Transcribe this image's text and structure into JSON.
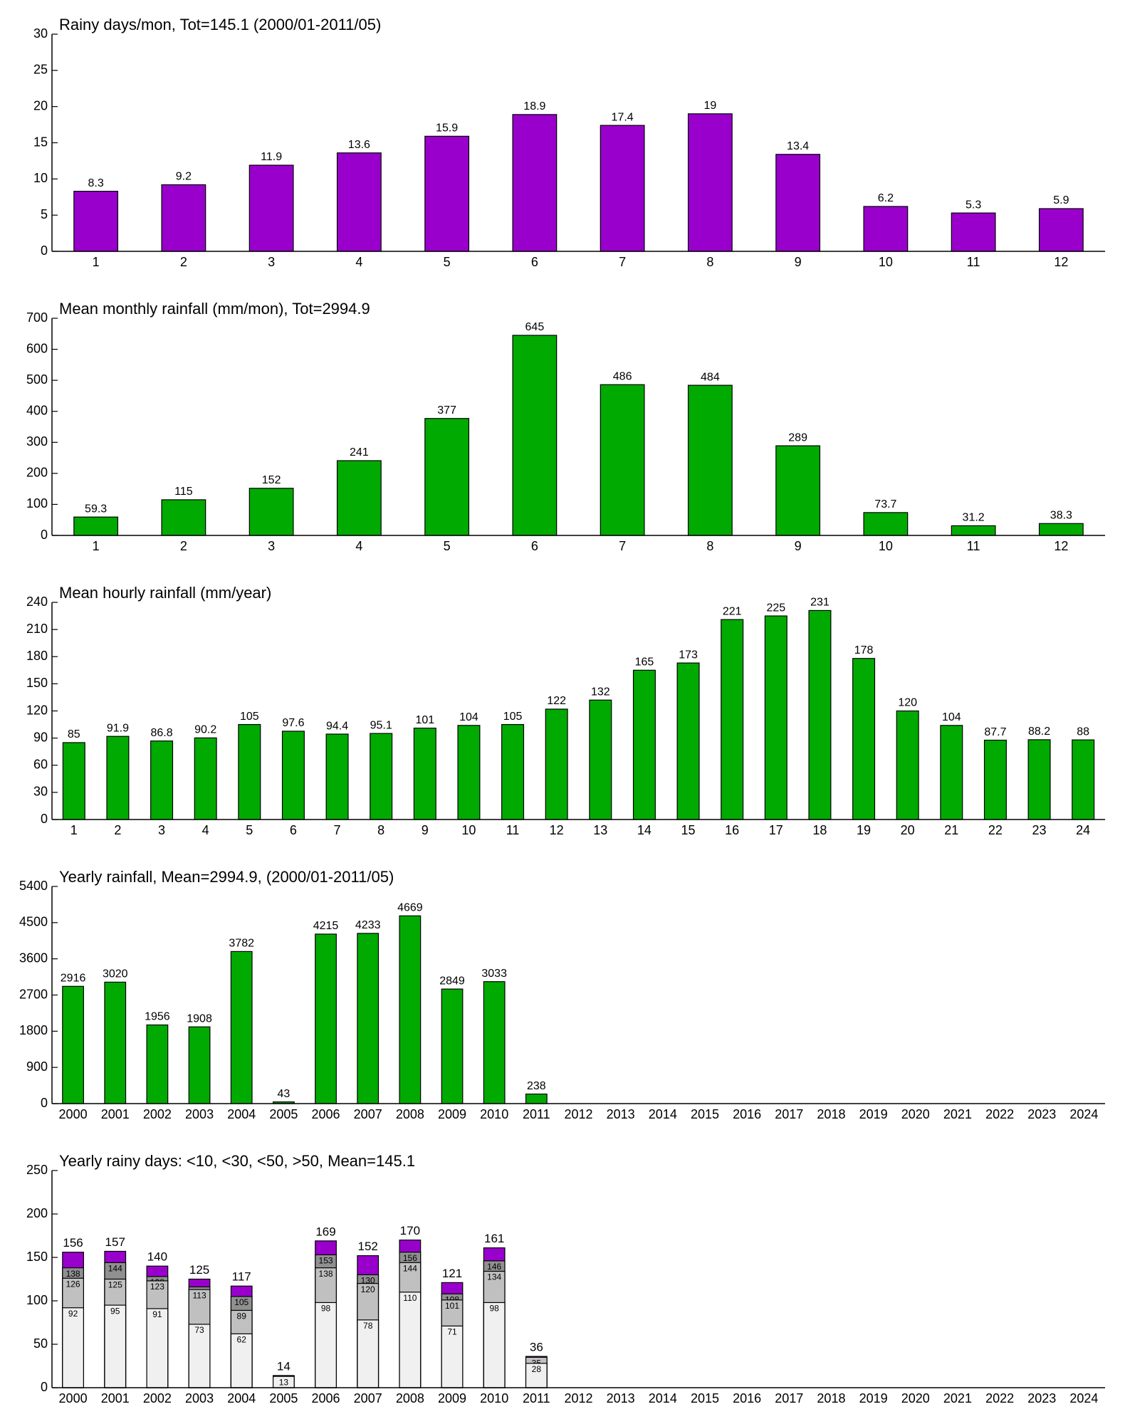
{
  "chart_data": [
    {
      "type": "bar",
      "title": "Rainy days/mon, Tot=145.1 (2000/01-2011/05)",
      "categories": [
        "1",
        "2",
        "3",
        "4",
        "5",
        "6",
        "7",
        "8",
        "9",
        "10",
        "11",
        "12"
      ],
      "values": [
        8.3,
        9.2,
        11.9,
        13.6,
        15.9,
        18.9,
        17.4,
        19,
        13.4,
        6.2,
        5.3,
        5.9
      ],
      "color": "#9900cc",
      "ylim": [
        0,
        30
      ],
      "yticks": [
        0,
        5,
        10,
        15,
        20,
        25,
        30
      ]
    },
    {
      "type": "bar",
      "title": "Mean monthly rainfall (mm/mon), Tot=2994.9",
      "categories": [
        "1",
        "2",
        "3",
        "4",
        "5",
        "6",
        "7",
        "8",
        "9",
        "10",
        "11",
        "12"
      ],
      "values": [
        59.3,
        115,
        152,
        241,
        377,
        645,
        486,
        484,
        289,
        73.7,
        31.2,
        38.3
      ],
      "color": "#00aa00",
      "ylim": [
        0,
        700
      ],
      "yticks": [
        0,
        100,
        200,
        300,
        400,
        500,
        600,
        700
      ]
    },
    {
      "type": "bar",
      "title": "Mean hourly rainfall (mm/year)",
      "categories": [
        "1",
        "2",
        "3",
        "4",
        "5",
        "6",
        "7",
        "8",
        "9",
        "10",
        "11",
        "12",
        "13",
        "14",
        "15",
        "16",
        "17",
        "18",
        "19",
        "20",
        "21",
        "22",
        "23",
        "24"
      ],
      "values": [
        85,
        91.9,
        86.8,
        90.2,
        105,
        97.6,
        94.4,
        95.1,
        101,
        104,
        105,
        122,
        132,
        165,
        173,
        221,
        225,
        231,
        178,
        120,
        104,
        87.7,
        88.2,
        88
      ],
      "color": "#00aa00",
      "ylim": [
        0,
        240
      ],
      "yticks": [
        0,
        30,
        60,
        90,
        120,
        150,
        180,
        210,
        240
      ]
    },
    {
      "type": "bar",
      "title": "Yearly rainfall, Mean=2994.9, (2000/01-2011/05)",
      "categories": [
        "2000",
        "2001",
        "2002",
        "2003",
        "2004",
        "2005",
        "2006",
        "2007",
        "2008",
        "2009",
        "2010",
        "2011",
        "2012",
        "2013",
        "2014",
        "2015",
        "2016",
        "2017",
        "2018",
        "2019",
        "2020",
        "2021",
        "2022",
        "2023",
        "2024"
      ],
      "values": [
        2916,
        3020,
        1956,
        1908,
        3782,
        43,
        4215,
        4233,
        4669,
        2849,
        3033,
        238,
        null,
        null,
        null,
        null,
        null,
        null,
        null,
        null,
        null,
        null,
        null,
        null,
        null
      ],
      "color": "#00aa00",
      "ylim": [
        0,
        5400
      ],
      "yticks": [
        0,
        900,
        1800,
        2700,
        3600,
        4500,
        5400
      ]
    },
    {
      "type": "bar",
      "title": "Yearly rainy days: <10, <30, <50, >50, Mean=145.1",
      "categories": [
        "2000",
        "2001",
        "2002",
        "2003",
        "2004",
        "2005",
        "2006",
        "2007",
        "2008",
        "2009",
        "2010",
        "2011",
        "2012",
        "2013",
        "2014",
        "2015",
        "2016",
        "2017",
        "2018",
        "2019",
        "2020",
        "2021",
        "2022",
        "2023",
        "2024"
      ],
      "series": [
        {
          "color": "#f0f0f0",
          "values": [
            92,
            95,
            91,
            73,
            62,
            13,
            98,
            78,
            110,
            71,
            98,
            28,
            null,
            null,
            null,
            null,
            null,
            null,
            null,
            null,
            null,
            null,
            null,
            null,
            null
          ]
        },
        {
          "color": "#c0c0c0",
          "values": [
            126,
            125,
            123,
            113,
            89,
            null,
            138,
            120,
            144,
            101,
            134,
            35,
            null,
            null,
            null,
            null,
            null,
            null,
            null,
            null,
            null,
            null,
            null,
            null,
            null
          ]
        },
        {
          "color": "#909090",
          "values": [
            138,
            144,
            128,
            116,
            105,
            null,
            153,
            130,
            156,
            108,
            146,
            null,
            null,
            null,
            null,
            null,
            null,
            null,
            null,
            null,
            null,
            null,
            null,
            null,
            null
          ]
        },
        {
          "color": "#9900cc",
          "values": [
            156,
            157,
            140,
            125,
            117,
            14,
            169,
            152,
            170,
            121,
            161,
            36,
            null,
            null,
            null,
            null,
            null,
            null,
            null,
            null,
            null,
            null,
            null,
            null,
            null
          ]
        }
      ],
      "ylim": [
        0,
        250
      ],
      "yticks": [
        0,
        50,
        100,
        150,
        200,
        250
      ]
    }
  ]
}
